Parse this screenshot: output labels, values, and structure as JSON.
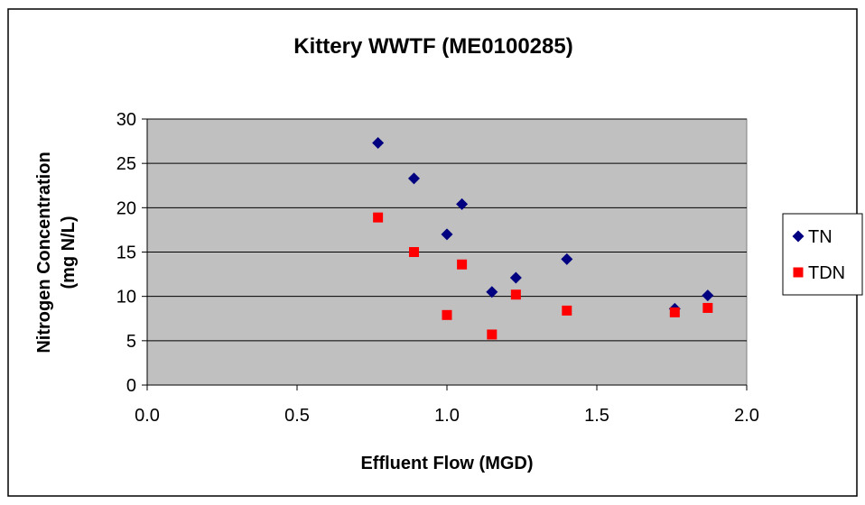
{
  "chart_data": {
    "type": "scatter",
    "title": "Kittery WWTF (ME0100285)",
    "xlabel": "Effluent Flow (MGD)",
    "ylabel_lines": [
      "Nitrogen Concentration",
      "(mg N/L)"
    ],
    "xlim": [
      0.0,
      2.0
    ],
    "ylim": [
      0,
      30
    ],
    "xticks": [
      "0.0",
      "0.5",
      "1.0",
      "1.5",
      "2.0"
    ],
    "yticks": [
      "0",
      "5",
      "10",
      "15",
      "20",
      "25",
      "30"
    ],
    "grid": "horizontal",
    "plot_background": "#c0c0c0",
    "legend_position": "right",
    "series": [
      {
        "name": "TN",
        "marker": "diamond",
        "color": "#000080",
        "points": [
          {
            "x": 0.77,
            "y": 27.3
          },
          {
            "x": 0.89,
            "y": 23.3
          },
          {
            "x": 1.0,
            "y": 17.0
          },
          {
            "x": 1.05,
            "y": 20.4
          },
          {
            "x": 1.15,
            "y": 10.5
          },
          {
            "x": 1.23,
            "y": 12.1
          },
          {
            "x": 1.4,
            "y": 14.2
          },
          {
            "x": 1.76,
            "y": 8.6
          },
          {
            "x": 1.87,
            "y": 10.1
          }
        ]
      },
      {
        "name": "TDN",
        "marker": "square",
        "color": "#ff0000",
        "points": [
          {
            "x": 0.77,
            "y": 18.9
          },
          {
            "x": 0.89,
            "y": 15.0
          },
          {
            "x": 1.0,
            "y": 7.9
          },
          {
            "x": 1.05,
            "y": 13.6
          },
          {
            "x": 1.15,
            "y": 5.7
          },
          {
            "x": 1.23,
            "y": 10.2
          },
          {
            "x": 1.4,
            "y": 8.4
          },
          {
            "x": 1.76,
            "y": 8.2
          },
          {
            "x": 1.87,
            "y": 8.7
          }
        ]
      }
    ]
  }
}
